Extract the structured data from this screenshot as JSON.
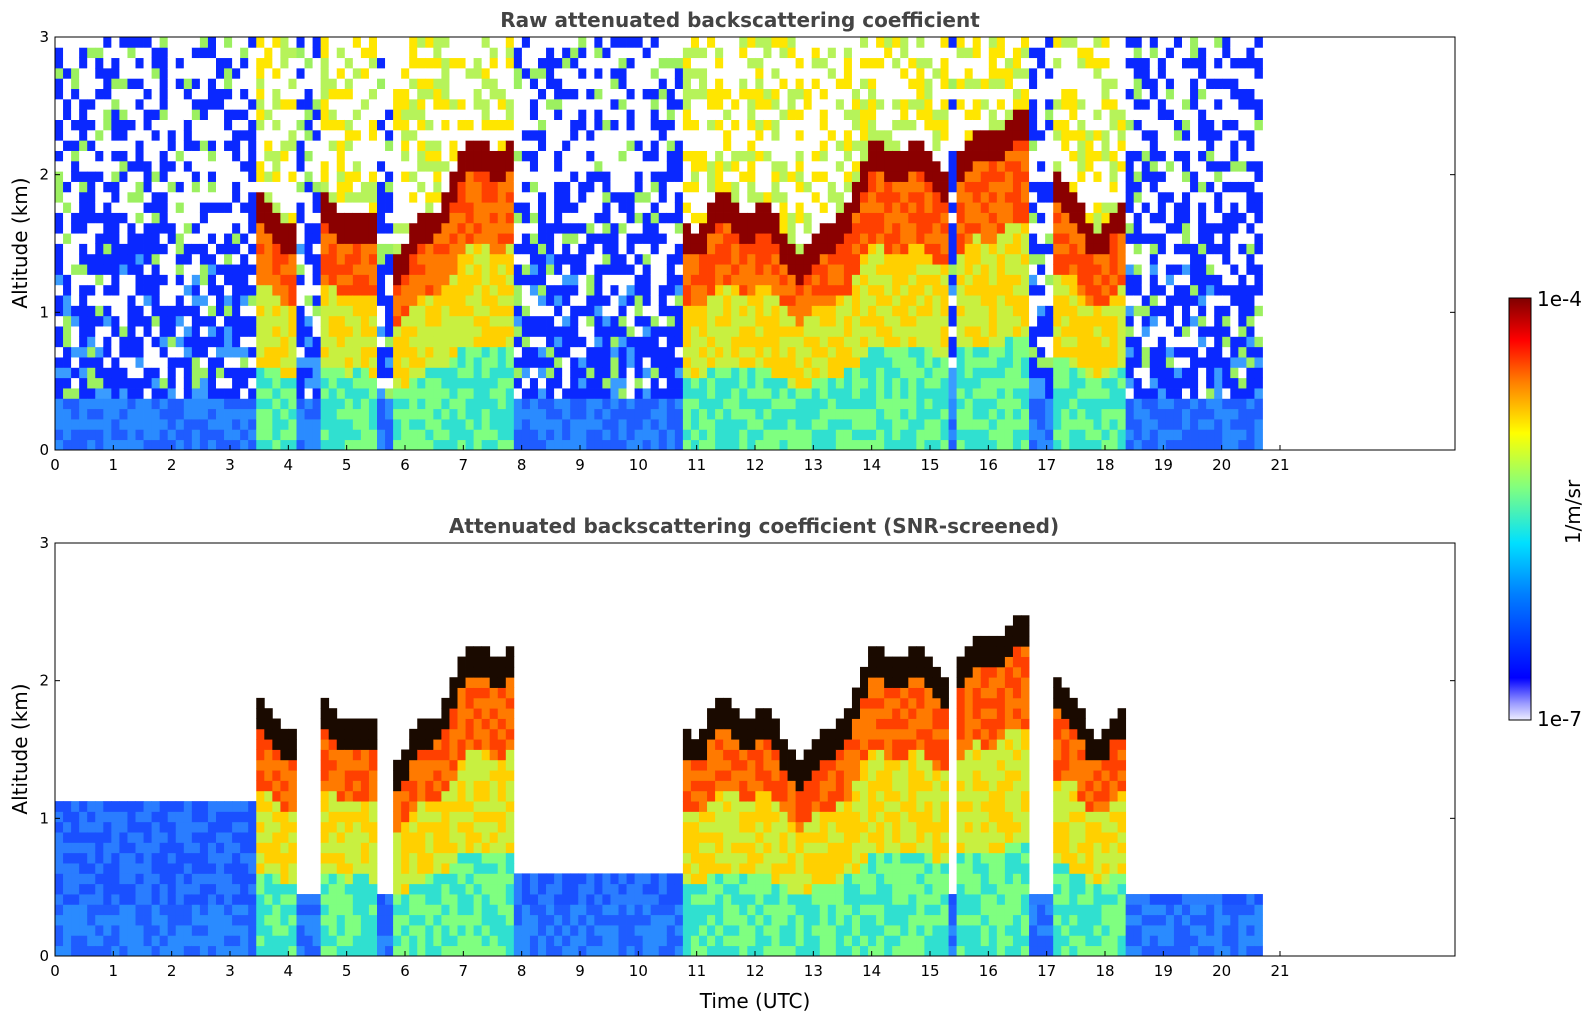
{
  "chart_data": [
    {
      "type": "heatmap",
      "title": "Raw attenuated backscattering coefficient",
      "xlabel": "",
      "ylabel": "Altitude (km)",
      "x_ticks": [
        "0",
        "1",
        "2",
        "3",
        "4",
        "5",
        "6",
        "7",
        "8",
        "9",
        "10",
        "11",
        "12",
        "13",
        "14",
        "15",
        "16",
        "17",
        "18",
        "19",
        "20",
        "21"
      ],
      "y_ticks": [
        "0",
        "1",
        "2",
        "3"
      ],
      "xlim": [
        0,
        24
      ],
      "ylim": [
        0,
        3
      ],
      "data_end_time": 20.7,
      "colorscale": "jet"
    },
    {
      "type": "heatmap",
      "title": "Attenuated backscattering coefficient (SNR-screened)",
      "xlabel": "Time (UTC)",
      "ylabel": "Altitude (km)",
      "x_ticks": [
        "0",
        "1",
        "2",
        "3",
        "4",
        "5",
        "6",
        "7",
        "8",
        "9",
        "10",
        "11",
        "12",
        "13",
        "14",
        "15",
        "16",
        "17",
        "18",
        "19",
        "20",
        "21"
      ],
      "y_ticks": [
        "0",
        "1",
        "2",
        "3"
      ],
      "xlim": [
        0,
        24
      ],
      "ylim": [
        0,
        3
      ],
      "data_end_time": 20.7,
      "colorscale": "jet"
    }
  ],
  "colorbar": {
    "label": "1/m/sr",
    "max_label": "1e-4",
    "min_label": "1e-7",
    "colors": [
      "#7f0000",
      "#ff0000",
      "#ff7f00",
      "#ffff00",
      "#7fff7f",
      "#00ffff",
      "#007fff",
      "#0000ff",
      "#e8e8ff"
    ]
  }
}
